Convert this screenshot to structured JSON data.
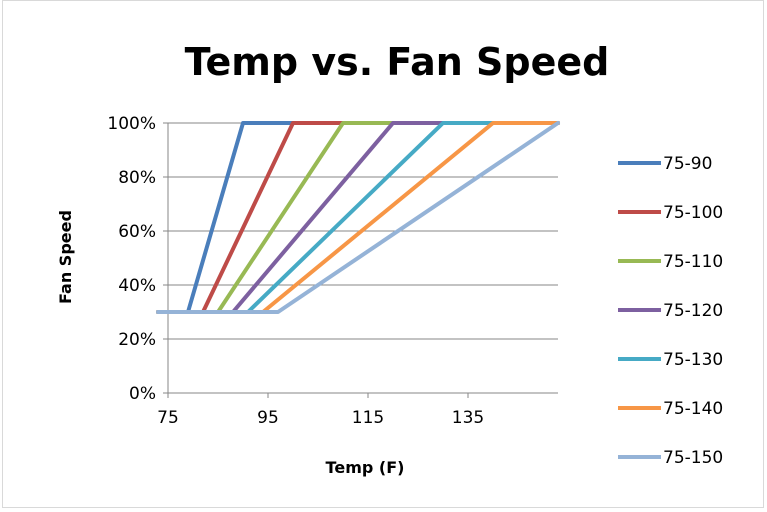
{
  "chart_data": {
    "type": "line",
    "title": "Temp vs. Fan Speed",
    "xlabel": "Temp (F)",
    "ylabel": "Fan Speed",
    "xlim": [
      75,
      153
    ],
    "ylim": [
      0,
      1
    ],
    "x_ticks": [
      75,
      95,
      115,
      135
    ],
    "y_ticks": [
      "0%",
      "20%",
      "40%",
      "60%",
      "80%",
      "100%"
    ],
    "grid": "horizontal",
    "legend_position": "right",
    "series": [
      {
        "name": "75-90",
        "color": "#4a7ebb",
        "points": [
          [
            73,
            0.3
          ],
          [
            79,
            0.3
          ],
          [
            90,
            1.0
          ],
          [
            153,
            1.0
          ]
        ]
      },
      {
        "name": "75-100",
        "color": "#be4b48",
        "points": [
          [
            73,
            0.3
          ],
          [
            82,
            0.3
          ],
          [
            100,
            1.0
          ],
          [
            153,
            1.0
          ]
        ]
      },
      {
        "name": "75-110",
        "color": "#98b954",
        "points": [
          [
            73,
            0.3
          ],
          [
            85,
            0.3
          ],
          [
            110,
            1.0
          ],
          [
            153,
            1.0
          ]
        ]
      },
      {
        "name": "75-120",
        "color": "#7d60a0",
        "points": [
          [
            73,
            0.3
          ],
          [
            88,
            0.3
          ],
          [
            120,
            1.0
          ],
          [
            153,
            1.0
          ]
        ]
      },
      {
        "name": "75-130",
        "color": "#46aac5",
        "points": [
          [
            73,
            0.3
          ],
          [
            91,
            0.3
          ],
          [
            130,
            1.0
          ],
          [
            153,
            1.0
          ]
        ]
      },
      {
        "name": "75-140",
        "color": "#f79646",
        "points": [
          [
            73,
            0.3
          ],
          [
            94,
            0.3
          ],
          [
            140,
            1.0
          ],
          [
            153,
            1.0
          ]
        ]
      },
      {
        "name": "75-150",
        "color": "#95b3d7",
        "points": [
          [
            73,
            0.3
          ],
          [
            97,
            0.3
          ],
          [
            153,
            1.0
          ]
        ]
      }
    ]
  }
}
